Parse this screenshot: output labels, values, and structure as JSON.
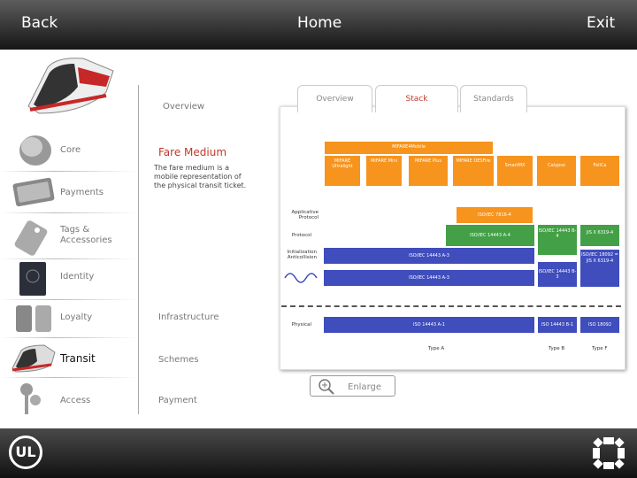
{
  "nav": {
    "back": "Back",
    "home": "Home",
    "exit": "Exit"
  },
  "sidebar": {
    "items": [
      {
        "label": "Core"
      },
      {
        "label": "Payments"
      },
      {
        "label": "Tags & Accessories"
      },
      {
        "label": "Identity"
      },
      {
        "label": "Loyalty"
      },
      {
        "label": "Transit"
      },
      {
        "label": "Access"
      }
    ]
  },
  "middle": {
    "overview": "Overview",
    "fare_title": "Fare Medium",
    "fare_desc": "The fare medium is a mobile representation of the physical transit ticket.",
    "infrastructure": "Infrastructure",
    "schemes": "Schemes",
    "payment": "Payment"
  },
  "tabs": {
    "overview": "Overview",
    "stack": "Stack",
    "standards": "Standards"
  },
  "stack": {
    "top_bar": "MIFARE4Mobile",
    "apps": [
      "MIFARE Ultralight",
      "MIFARE Mini",
      "MIFARE Plus",
      "MIFARE DESFire",
      "SmartMX",
      "Calypso",
      "FeliCa"
    ],
    "layers": {
      "applicative": "Applicative Protocol",
      "protocol": "Protocol",
      "init": "Initialization Anticollision",
      "physical": "Physical"
    },
    "iso7816": "ISO/IEC 7816-4",
    "iso14443_4": "ISO/IEC 14443 A-4",
    "iso_b4": "ISO/IEC 14443 B-4",
    "jis_right": "JIS X 6319-4",
    "iso14443_3": "ISO/IEC 14443 A-3",
    "iso_b3": "ISO/IEC 14443 B-3",
    "iso_b3_right": "ISO/IEC 18092 = JIS X 6319-4",
    "iso_a1": "ISO 14443 A-1",
    "iso_b1": "ISO 14443 B-1",
    "iso_18092": "ISO 18092",
    "types": [
      "Type A",
      "Type B",
      "Type F"
    ]
  },
  "enlarge": "Enlarge",
  "footer": {
    "logo_text": "UL"
  },
  "colors": {
    "accent": "#c0392b",
    "orange": "#f7941d",
    "green": "#43a047",
    "blue": "#3f4dbd"
  }
}
